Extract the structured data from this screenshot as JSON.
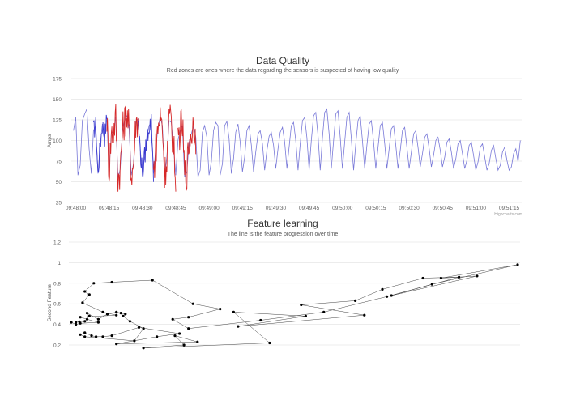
{
  "chart_data": [
    {
      "type": "line",
      "title": "Data Quality",
      "subtitle": "Red zones are ones where the data regarding the sensors is suspected of having low quality",
      "ylabel": "Amps",
      "xlabel": "",
      "ylim": [
        25,
        175
      ],
      "yticks": [
        "175",
        "150",
        "125",
        "100",
        "75",
        "50",
        "25"
      ],
      "xticks": [
        "09:48:00",
        "09:48:15",
        "09:48:30",
        "09:48:45",
        "09:49:00",
        "09:49:15",
        "09:49:30",
        "09:49:45",
        "09:50:00",
        "09:50:15",
        "09:50:30",
        "09:50:45",
        "09:51:00",
        "09:51:15"
      ],
      "xlim": [
        "09:47:58",
        "09:51:21"
      ],
      "credit": "Highcharts.com",
      "grid": true,
      "colors": {
        "normal": "#7878d8",
        "good_zone": "#3a3ad0",
        "bad_zone": "#d62828"
      },
      "series": [
        {
          "x_seconds_after_0948": [
            -1,
            0,
            1,
            2,
            3,
            4,
            5,
            6,
            7,
            8,
            9,
            10,
            11,
            12,
            13,
            14,
            15,
            16,
            17,
            18,
            19,
            20,
            21,
            22,
            23,
            24,
            25,
            26,
            27,
            28,
            29,
            30,
            31,
            32,
            33,
            34,
            35,
            36,
            37,
            38,
            39,
            40,
            41,
            42,
            43,
            44,
            45,
            46,
            47,
            48,
            49,
            50,
            51,
            52,
            53,
            54,
            55,
            56,
            57,
            58,
            59,
            60,
            61,
            62,
            63,
            64,
            65,
            66,
            67,
            68,
            69,
            70,
            71,
            72,
            73,
            74,
            75,
            76,
            77,
            78,
            79,
            80,
            81,
            82,
            83,
            84,
            85,
            86,
            87,
            88,
            89,
            90,
            91,
            92,
            93,
            94,
            95,
            96,
            97,
            98,
            99,
            100,
            101,
            102,
            103,
            104,
            105,
            106,
            107,
            108,
            109,
            110,
            111,
            112,
            113,
            114,
            115,
            116,
            117,
            118,
            119,
            120,
            121,
            122,
            123,
            124,
            125,
            126,
            127,
            128,
            129,
            130,
            131,
            132,
            133,
            134,
            135,
            136,
            137,
            138,
            139,
            140,
            141,
            142,
            143,
            144,
            145,
            146,
            147,
            148,
            149,
            150,
            151,
            152,
            153,
            154,
            155,
            156,
            157,
            158,
            159,
            160,
            161,
            162,
            163,
            164,
            165,
            166,
            167,
            168,
            169,
            170,
            171,
            172,
            173,
            174,
            175,
            176,
            177,
            178,
            179,
            180,
            181,
            182,
            183,
            184,
            185,
            186,
            187,
            188,
            189,
            190,
            191,
            192,
            193,
            194,
            195,
            196,
            197,
            198,
            199,
            200
          ],
          "y": [
            112,
            128,
            58,
            70,
            124,
            132,
            138,
            90,
            60,
            112,
            118,
            60,
            95,
            120,
            105,
            128,
            62,
            108,
            112,
            128,
            55,
            65,
            110,
            125,
            130,
            115,
            58,
            72,
            122,
            126,
            90,
            60,
            80,
            102,
            118,
            122,
            60,
            90,
            116,
            128,
            118,
            58,
            80,
            124,
            122,
            92,
            58,
            100,
            112,
            118,
            56,
            62,
            98,
            108,
            118,
            104,
            56,
            64,
            110,
            118,
            104,
            58,
            74,
            112,
            122,
            118,
            58,
            72,
            118,
            123,
            102,
            60,
            78,
            110,
            120,
            98,
            62,
            80,
            112,
            118,
            94,
            62,
            86,
            108,
            112,
            96,
            64,
            88,
            105,
            110,
            94,
            66,
            90,
            110,
            116,
            98,
            66,
            92,
            118,
            122,
            100,
            64,
            96,
            124,
            128,
            104,
            64,
            100,
            130,
            134,
            106,
            64,
            104,
            134,
            138,
            108,
            66,
            100,
            132,
            136,
            104,
            66,
            98,
            128,
            134,
            102,
            64,
            96,
            124,
            130,
            100,
            66,
            94,
            120,
            124,
            98,
            66,
            92,
            118,
            122,
            96,
            66,
            90,
            114,
            118,
            94,
            66,
            88,
            112,
            116,
            92,
            66,
            86,
            108,
            112,
            92,
            68,
            84,
            104,
            108,
            90,
            68,
            82,
            100,
            104,
            88,
            68,
            80,
            98,
            102,
            86,
            66,
            78,
            96,
            100,
            84,
            66,
            76,
            94,
            98,
            82,
            64,
            74,
            92,
            96,
            80,
            64,
            72,
            88,
            94,
            78,
            64,
            70,
            86,
            92,
            76,
            64,
            68,
            84,
            90,
            74,
            100
          ]
        }
      ],
      "highlighted_zones": [
        {
          "color": "blue",
          "from_seconds": 8,
          "to_seconds": 14
        },
        {
          "color": "red",
          "from_seconds": 14,
          "to_seconds": 28
        },
        {
          "color": "blue",
          "from_seconds": 28,
          "to_seconds": 35
        },
        {
          "color": "red",
          "from_seconds": 35,
          "to_seconds": 45
        },
        {
          "color": "red",
          "from_seconds": 46,
          "to_seconds": 54
        }
      ]
    },
    {
      "type": "line",
      "title": "Feature learning",
      "subtitle": "The line is the feature progression over time",
      "ylabel": "Second Feature",
      "xlabel": "",
      "ylim": [
        0.2,
        1.2
      ],
      "yticks": [
        "1.2",
        "1",
        "0.8",
        "0.6",
        "0.4",
        "0.2"
      ],
      "grid": true,
      "series": [
        {
          "x": [
            0.01,
            0.018,
            0.03,
            0.04,
            0.035,
            0.06,
            0.08,
            0.1,
            0.11,
            0.12,
            0.115,
            0.13,
            0.16,
            0.14,
            0.03,
            0.02,
            0.03,
            0.045,
            0.055,
            0.07,
            0.09,
            0.15,
            0.24,
            0.19,
            0.1,
            0.28,
            0.23,
            0.25,
            0.16,
            0.44,
            0.36,
            0.52,
            0.37,
            0.65,
            0.51,
            0.63,
            0.69,
            0.78,
            0.86,
            0.71,
            0.9,
            0.82,
            0.99,
            0.8,
            0.7,
            0.56,
            0.42,
            0.26,
            0.225,
            0.26,
            0.33,
            0.27,
            0.18,
            0.09,
            0.05,
            0.03,
            0.04,
            0.025,
            0.07,
            0.1,
            0.02,
            0.035,
            0.06,
            0.02,
            0.01,
            0.0
          ],
          "y": [
            0.42,
            0.425,
            0.43,
            0.48,
            0.51,
            0.45,
            0.5,
            0.52,
            0.51,
            0.5,
            0.48,
            0.43,
            0.36,
            0.24,
            0.28,
            0.3,
            0.32,
            0.29,
            0.28,
            0.28,
            0.29,
            0.37,
            0.31,
            0.28,
            0.21,
            0.23,
            0.29,
            0.2,
            0.17,
            0.22,
            0.52,
            0.48,
            0.38,
            0.49,
            0.59,
            0.63,
            0.74,
            0.85,
            0.86,
            0.68,
            0.87,
            0.85,
            0.98,
            0.79,
            0.67,
            0.52,
            0.44,
            0.36,
            0.45,
            0.47,
            0.55,
            0.6,
            0.83,
            0.81,
            0.8,
            0.72,
            0.69,
            0.61,
            0.52,
            0.49,
            0.47,
            0.45,
            0.42,
            0.41,
            0.4,
            0.42
          ]
        }
      ]
    }
  ]
}
